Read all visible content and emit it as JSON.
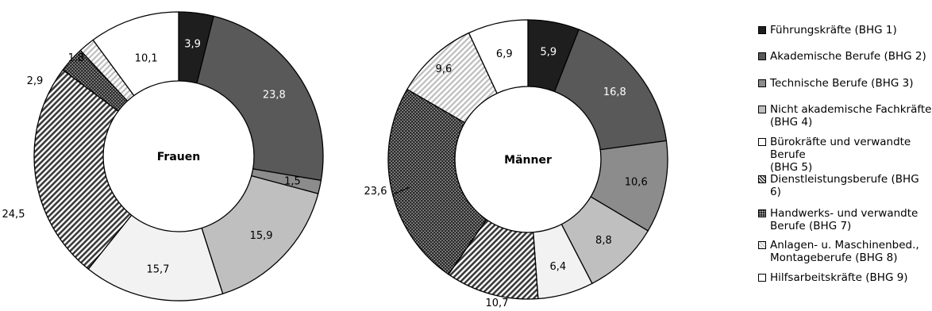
{
  "chart_data": {
    "type": "donut",
    "categories": [
      "Führungskräfte (BHG 1)",
      "Akademische Berufe (BHG 2)",
      "Technische Berufe (BHG 3)",
      "Nicht akademische Fachkräfte\n(BHG 4)",
      "Bürokräfte und verwandte Berufe\n(BHG 5)",
      "Dienstleistungsberufe (BHG 6)",
      "Handwerks- und verwandte\nBerufe (BHG 7)",
      "Anlagen- u. Maschinenbed.,\nMontageberufe (BHG 8)",
      "Hilfsarbeitskräfte (BHG 9)"
    ],
    "series": [
      {
        "name": "Frauen",
        "values": [
          3.9,
          23.8,
          1.5,
          15.9,
          15.7,
          24.5,
          2.9,
          1.8,
          10.1
        ],
        "labels": [
          "3,9",
          "23,8",
          "1,5",
          "15,9",
          "15,7",
          "24,5",
          "2,9",
          "1,8",
          "10,1"
        ]
      },
      {
        "name": "Männer",
        "values": [
          5.9,
          16.8,
          10.6,
          8.8,
          6.4,
          10.7,
          23.6,
          9.6,
          6.9
        ],
        "labels": [
          "5,9",
          "16,8",
          "10,6",
          "8,8",
          "6,4",
          "10,7",
          "23,6",
          "9,6",
          "6,9"
        ]
      }
    ],
    "legend_position": "right",
    "patterns": [
      "solid-black",
      "solid-dark-gray",
      "solid-gray",
      "solid-light-gray",
      "solid-very-light-gray",
      "diagonal-stripes",
      "dark-dotted",
      "light-diagonal-stripes",
      "solid-white"
    ],
    "colors": [
      "#1e1e1e",
      "#595959",
      "#8c8c8c",
      "#bfbfbf",
      "#f2f2f2",
      "#ffffff",
      "#333333",
      "#e6e6e6",
      "#ffffff"
    ]
  }
}
